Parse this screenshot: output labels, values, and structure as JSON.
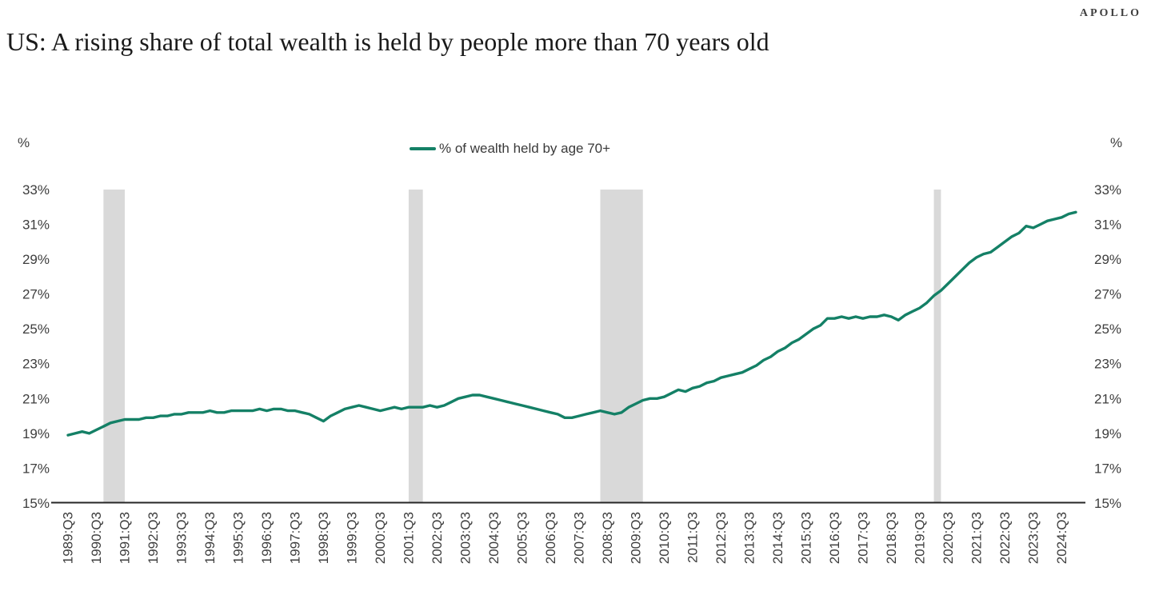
{
  "header": {
    "logo": "APOLLO",
    "title": "US: A rising share of total wealth is held by people more than 70 years old"
  },
  "chart_data": {
    "type": "line",
    "title": "US: A rising share of total wealth is held by people more than 70 years old",
    "legend_position": "top-center",
    "grid": false,
    "y_axis": {
      "unit_label": "%",
      "min": 15,
      "max": 33,
      "tick_step": 2,
      "tick_labels": [
        "33%",
        "31%",
        "29%",
        "27%",
        "25%",
        "23%",
        "21%",
        "19%",
        "17%",
        "15%"
      ],
      "shown_on": "both-sides"
    },
    "x_axis": {
      "frequency": "quarterly",
      "start": "1989:Q3",
      "end": "2025:Q1",
      "tick_labels": [
        "1989:Q3",
        "1990:Q3",
        "1991:Q3",
        "1992:Q3",
        "1993:Q3",
        "1994:Q3",
        "1995:Q3",
        "1996:Q3",
        "1997:Q3",
        "1998:Q3",
        "1999:Q3",
        "2000:Q3",
        "2001:Q3",
        "2002:Q3",
        "2003:Q3",
        "2004:Q3",
        "2005:Q3",
        "2006:Q3",
        "2007:Q3",
        "2008:Q3",
        "2009:Q3",
        "2010:Q3",
        "2011:Q3",
        "2012:Q3",
        "2013:Q3",
        "2014:Q3",
        "2015:Q3",
        "2016:Q3",
        "2017:Q3",
        "2018:Q3",
        "2019:Q3",
        "2020:Q3",
        "2021:Q3",
        "2022:Q3",
        "2023:Q3",
        "2024:Q3"
      ]
    },
    "series": [
      {
        "name": "% of wealth held by age 70+",
        "color": "#148066",
        "values": [
          18.9,
          19.0,
          19.1,
          19.0,
          19.2,
          19.4,
          19.6,
          19.7,
          19.8,
          19.8,
          19.8,
          19.9,
          19.9,
          20.0,
          20.0,
          20.1,
          20.1,
          20.2,
          20.2,
          20.2,
          20.3,
          20.2,
          20.2,
          20.3,
          20.3,
          20.3,
          20.3,
          20.4,
          20.3,
          20.4,
          20.4,
          20.3,
          20.3,
          20.2,
          20.1,
          19.9,
          19.7,
          20.0,
          20.2,
          20.4,
          20.5,
          20.6,
          20.5,
          20.4,
          20.3,
          20.4,
          20.5,
          20.4,
          20.5,
          20.5,
          20.5,
          20.6,
          20.5,
          20.6,
          20.8,
          21.0,
          21.1,
          21.2,
          21.2,
          21.1,
          21.0,
          20.9,
          20.8,
          20.7,
          20.6,
          20.5,
          20.4,
          20.3,
          20.2,
          20.1,
          19.9,
          19.9,
          20.0,
          20.1,
          20.2,
          20.3,
          20.2,
          20.1,
          20.2,
          20.5,
          20.7,
          20.9,
          21.0,
          21.0,
          21.1,
          21.3,
          21.5,
          21.4,
          21.6,
          21.7,
          21.9,
          22.0,
          22.2,
          22.3,
          22.4,
          22.5,
          22.7,
          22.9,
          23.2,
          23.4,
          23.7,
          23.9,
          24.2,
          24.4,
          24.7,
          25.0,
          25.2,
          25.6,
          25.6,
          25.7,
          25.6,
          25.7,
          25.6,
          25.7,
          25.7,
          25.8,
          25.7,
          25.5,
          25.8,
          26.0,
          26.2,
          26.5,
          26.9,
          27.2,
          27.6,
          28.0,
          28.4,
          28.8,
          29.1,
          29.3,
          29.4,
          29.7,
          30.0,
          30.3,
          30.5,
          30.9,
          30.8,
          31.0,
          31.2,
          31.3,
          31.4,
          31.6,
          31.7
        ]
      }
    ],
    "recession_bands": [
      {
        "start": "1990:Q4",
        "end": "1991:Q3"
      },
      {
        "start": "2001:Q3",
        "end": "2002:Q1"
      },
      {
        "start": "2008:Q2",
        "end": "2009:Q4"
      },
      {
        "start": "2020:Q1",
        "end": "2020:Q2"
      }
    ],
    "recession_band_color": "#d9d9d9"
  }
}
